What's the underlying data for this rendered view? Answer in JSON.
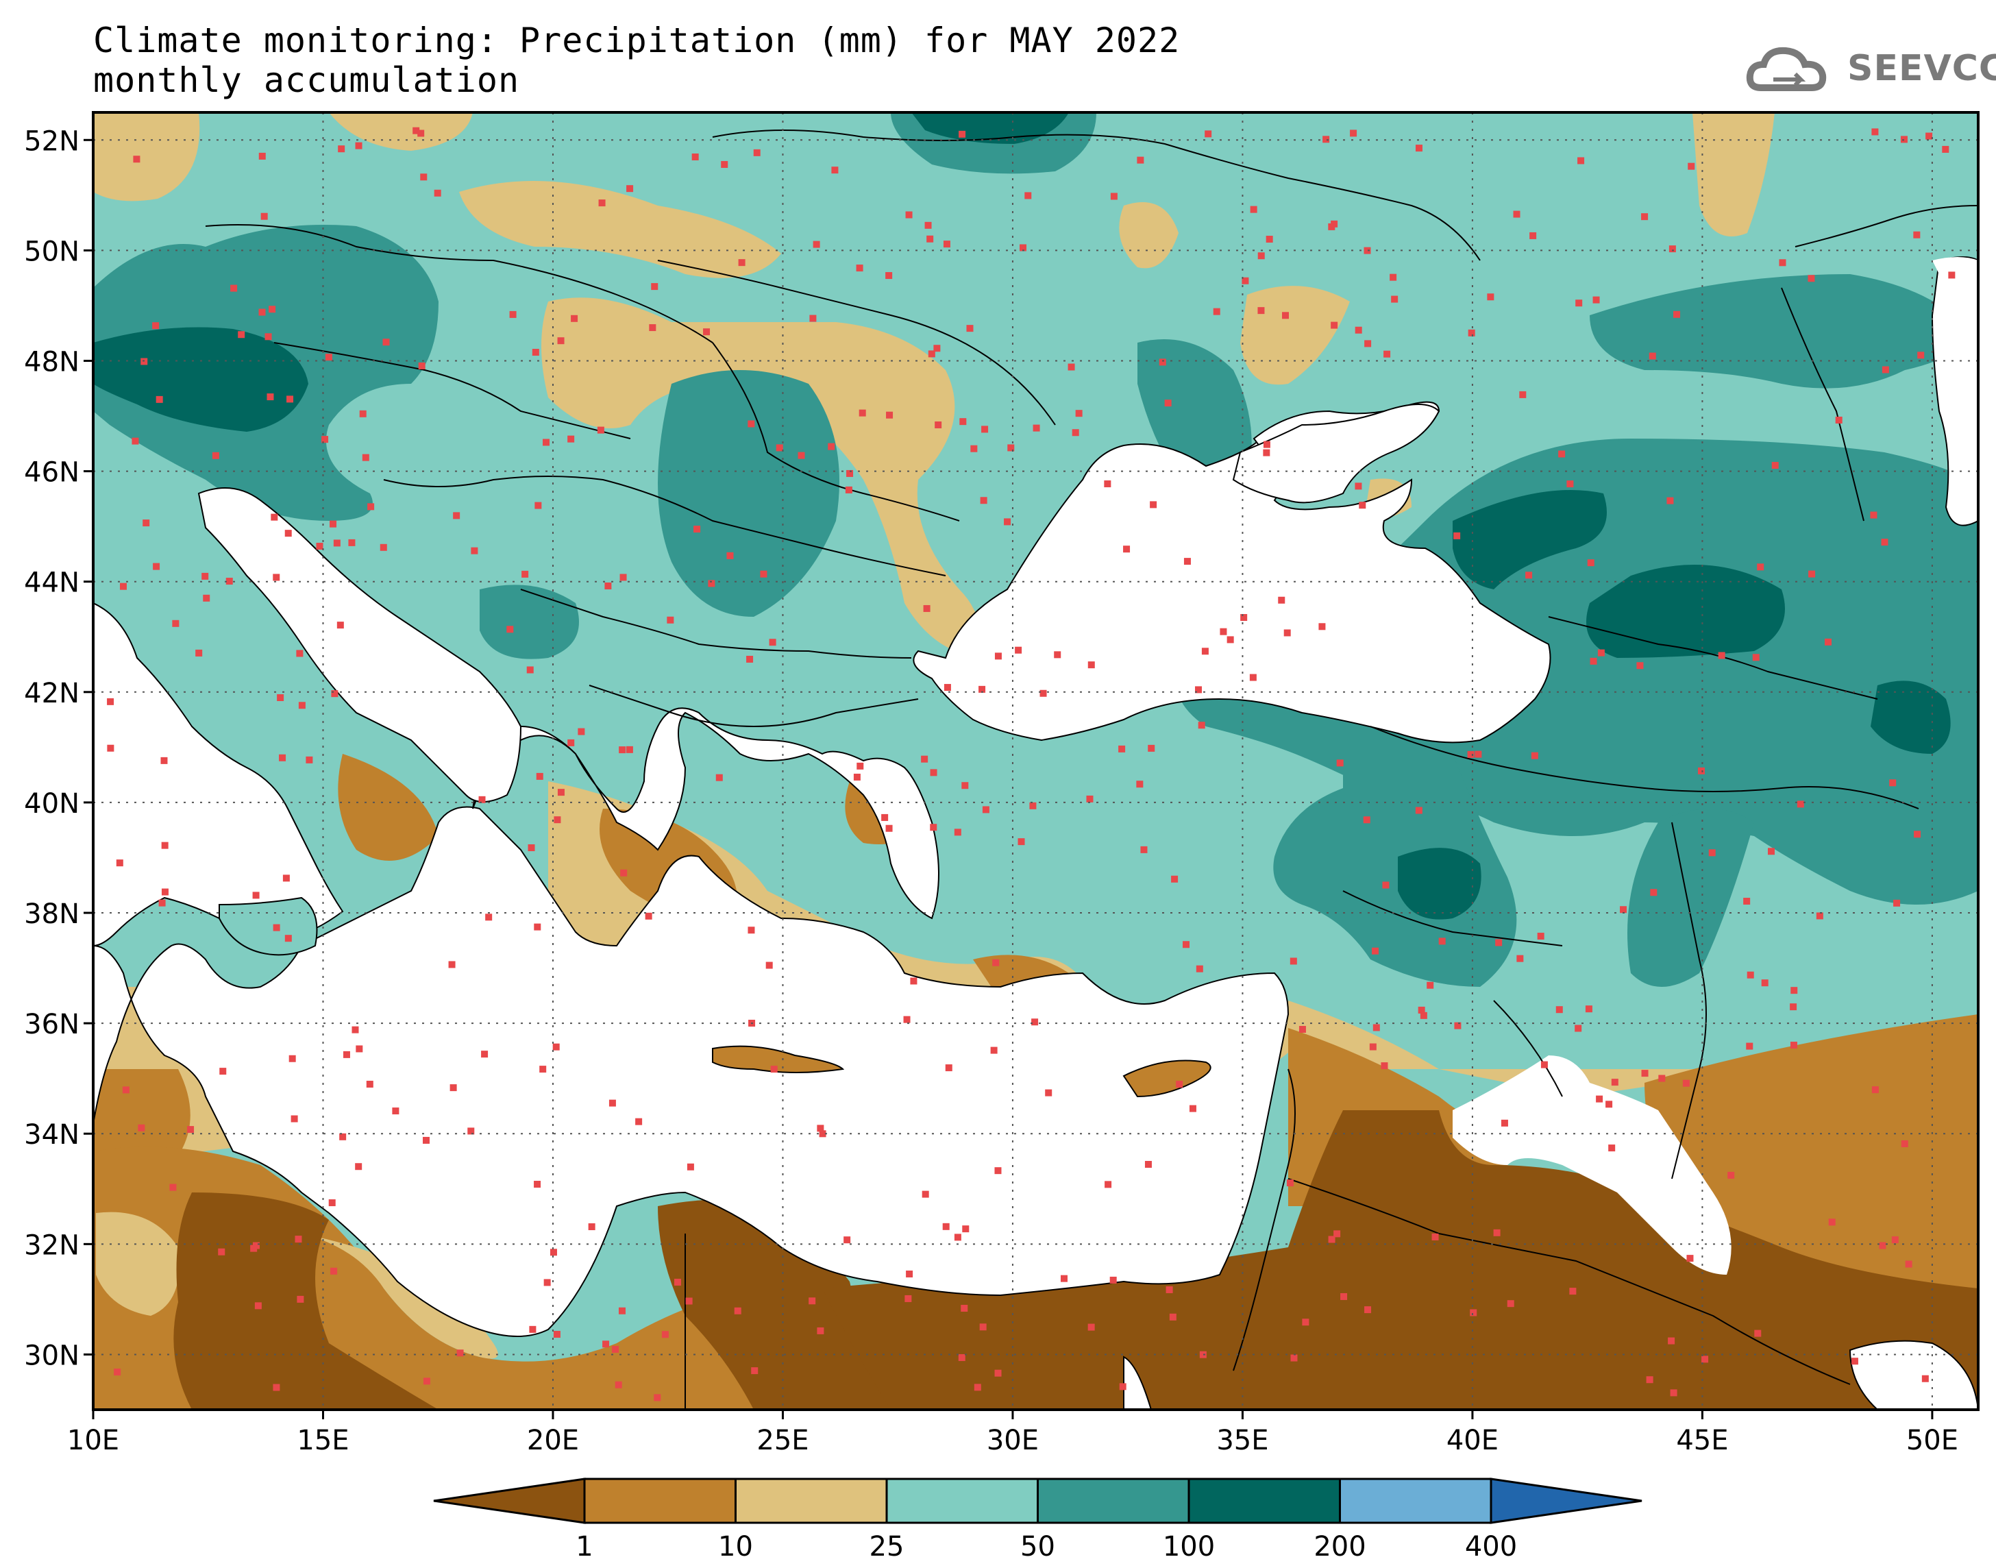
{
  "header": {
    "title_line1": "Climate monitoring: Precipitation (mm) for MAY 2022",
    "title_line2": "monthly accumulation"
  },
  "logo": {
    "text": "SEEVCCC",
    "icon": "cloud-icon"
  },
  "map": {
    "lat_labels": [
      "52N",
      "50N",
      "48N",
      "46N",
      "44N",
      "42N",
      "40N",
      "38N",
      "36N",
      "34N",
      "32N",
      "30N"
    ],
    "lon_labels": [
      "10E",
      "15E",
      "20E",
      "25E",
      "30E",
      "35E",
      "40E",
      "45E",
      "50E"
    ],
    "lat_range": [
      29,
      52.5
    ],
    "lon_range": [
      10,
      51
    ],
    "station_color": "#e8474a"
  },
  "colorbar": {
    "thresholds": [
      "1",
      "10",
      "25",
      "50",
      "100",
      "200",
      "400"
    ],
    "colors": [
      "#8c5310",
      "#bf812d",
      "#dfc27d",
      "#80cdc1",
      "#35978f",
      "#01665e",
      "#6baed6",
      "#2166ac"
    ]
  }
}
